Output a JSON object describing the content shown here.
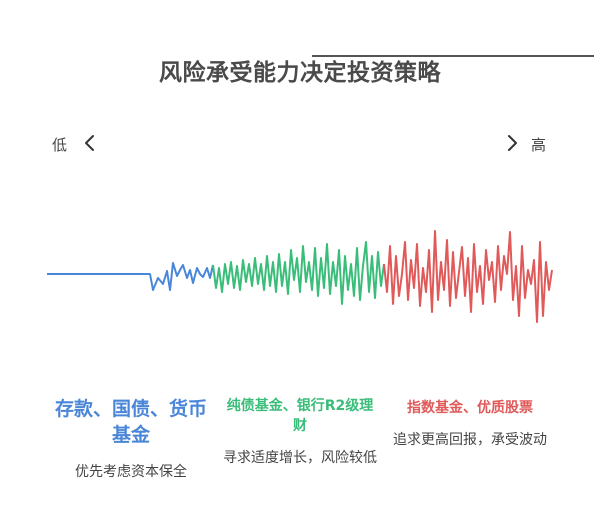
{
  "title": "风险承受能力决定投资策略",
  "scale": {
    "low": "低",
    "high": "高",
    "left_icon": "chevron-left-icon",
    "right_icon": "chevron-right-icon"
  },
  "colors": {
    "low": "#4a86d8",
    "mid": "#3bbd7a",
    "high": "#e05a5a",
    "title": "#4a4a4a",
    "text": "#444444"
  },
  "columns": [
    {
      "title": "存款、国债、货币基金",
      "desc": "优先考虑资本保全"
    },
    {
      "title": "纯债基金、银行R2级理财",
      "desc": "寻求适度增长，风险较低"
    },
    {
      "title": "指数基金、优质股票",
      "desc": "追求更高回报，承受波动"
    }
  ]
}
